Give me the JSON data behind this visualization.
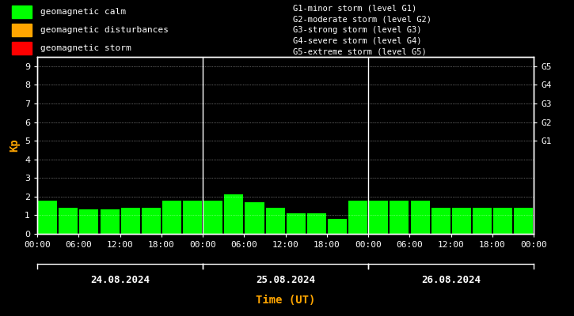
{
  "background_color": "#000000",
  "text_color": "#ffffff",
  "orange_color": "#FFA500",
  "bar_color_calm": "#00FF00",
  "bar_color_disturbance": "#FFA500",
  "bar_color_storm": "#FF0000",
  "days": [
    "24.08.2024",
    "25.08.2024",
    "26.08.2024"
  ],
  "kp_values": [
    [
      1.8,
      1.4,
      1.3,
      1.3,
      1.4,
      1.4,
      1.8,
      1.8
    ],
    [
      1.8,
      2.1,
      1.7,
      1.4,
      1.1,
      1.1,
      0.8,
      1.8
    ],
    [
      1.8,
      1.8,
      1.8,
      1.4,
      1.4,
      1.4,
      1.4,
      1.4
    ]
  ],
  "legend_items": [
    {
      "label": "geomagnetic calm",
      "color": "#00FF00"
    },
    {
      "label": "geomagnetic disturbances",
      "color": "#FFA500"
    },
    {
      "label": "geomagnetic storm",
      "color": "#FF0000"
    }
  ],
  "right_labels": [
    {
      "y": 9.0,
      "text": "G5"
    },
    {
      "y": 8.0,
      "text": "G4"
    },
    {
      "y": 7.0,
      "text": "G3"
    },
    {
      "y": 6.0,
      "text": "G2"
    },
    {
      "y": 5.0,
      "text": "G1"
    }
  ],
  "storm_annotations": [
    "G1-minor storm (level G1)",
    "G2-moderate storm (level G2)",
    "G3-strong storm (level G3)",
    "G4-severe storm (level G4)",
    "G5-extreme storm (level G5)"
  ],
  "xtick_labels": [
    "00:00",
    "06:00",
    "12:00",
    "18:00",
    "00:00",
    "06:00",
    "12:00",
    "18:00",
    "00:00",
    "06:00",
    "12:00",
    "18:00",
    "00:00"
  ],
  "yticks": [
    0,
    1,
    2,
    3,
    4,
    5,
    6,
    7,
    8,
    9
  ],
  "ylim": [
    0,
    9.5
  ],
  "bar_width": 0.92,
  "n_intervals": 8,
  "fontsize_ticks": 8,
  "fontsize_legend": 8,
  "fontsize_ylabel": 10,
  "fontsize_xlabel": 10,
  "fontsize_day": 9,
  "fontsize_annotations": 7.5
}
